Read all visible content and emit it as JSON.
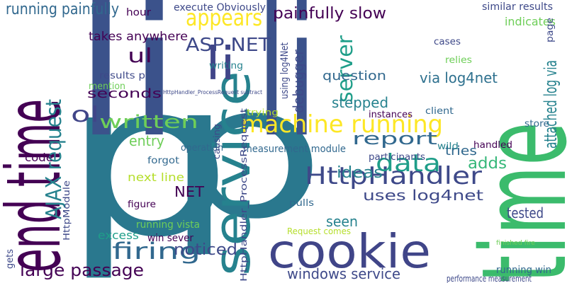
{
  "words": [
    "p",
    "p",
    "li",
    "li",
    "cookie",
    "end time",
    "time",
    "service",
    "machine running",
    "HttpHandler",
    "data",
    "li",
    "firing",
    "appears",
    "ASP NET",
    "AJAX request",
    "large passage",
    "written",
    "ol",
    "ul",
    "report",
    "server",
    "painfully slow",
    "running painfully",
    "windows service",
    "uses log4net",
    "via log4net",
    "question",
    "stepped",
    "ideas",
    "adds",
    "noticed",
    "entry",
    "seconds",
    "attached log via",
    "takes anywhere",
    "seen",
    "tested",
    "NET",
    "tries",
    "next line",
    "code",
    "excess",
    "debugger",
    "running vista",
    "win sever",
    "running win",
    "measurement module",
    "similar results",
    "indicates",
    "execute Obviously",
    "hour",
    "writing",
    "results p",
    "mention",
    "trying",
    "operation",
    "forgot",
    "participants",
    "handled",
    "wild",
    "store",
    "instances",
    "client",
    "cases",
    "relies",
    "pulls",
    "figure",
    "Request comes",
    "performance measurement",
    "finished fire",
    "using log4Net",
    "HttpModule",
    "HttpHandler_ProcessRequest",
    "causing",
    "gets",
    "page",
    "HttpHandler_ProcessRequest subtract"
  ]
}
